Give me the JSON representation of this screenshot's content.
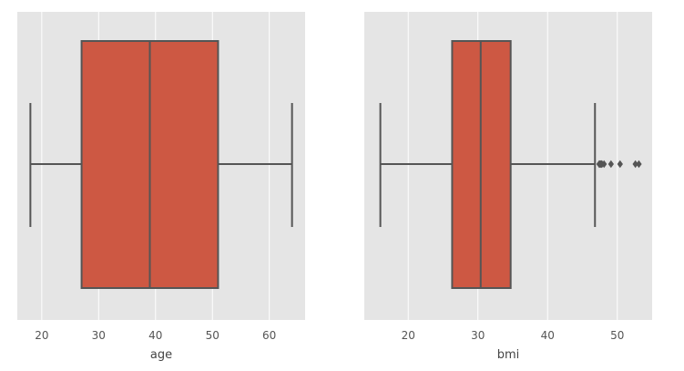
{
  "chart_data": [
    {
      "type": "boxplot",
      "title": "",
      "xlabel": "age",
      "ylabel": "",
      "xlim": [
        15.7,
        66.3
      ],
      "xticks": [
        20,
        30,
        40,
        50,
        60
      ],
      "xtick_labels": [
        "20",
        "30",
        "40",
        "50",
        "60"
      ],
      "grid": "vertical",
      "box": {
        "whisker_low": 18,
        "q1": 27,
        "median": 39,
        "q3": 51,
        "whisker_high": 64,
        "outliers": []
      },
      "color": "#cd5843",
      "edge_color": "#555555",
      "background": "#e5e5e5"
    },
    {
      "type": "boxplot",
      "title": "",
      "xlabel": "bmi",
      "ylabel": "",
      "xlim": [
        13.7,
        55.0
      ],
      "xticks": [
        20,
        30,
        40,
        50
      ],
      "xtick_labels": [
        "20",
        "30",
        "40",
        "50"
      ],
      "grid": "vertical",
      "box": {
        "whisker_low": 16.0,
        "q1": 26.3,
        "median": 30.4,
        "q3": 34.7,
        "whisker_high": 46.8,
        "outliers": [
          47.4,
          47.5,
          47.6,
          47.7,
          47.8,
          48.1,
          49.1,
          50.4,
          52.6,
          53.1
        ]
      },
      "color": "#cd5843",
      "edge_color": "#555555",
      "background": "#e5e5e5"
    }
  ]
}
